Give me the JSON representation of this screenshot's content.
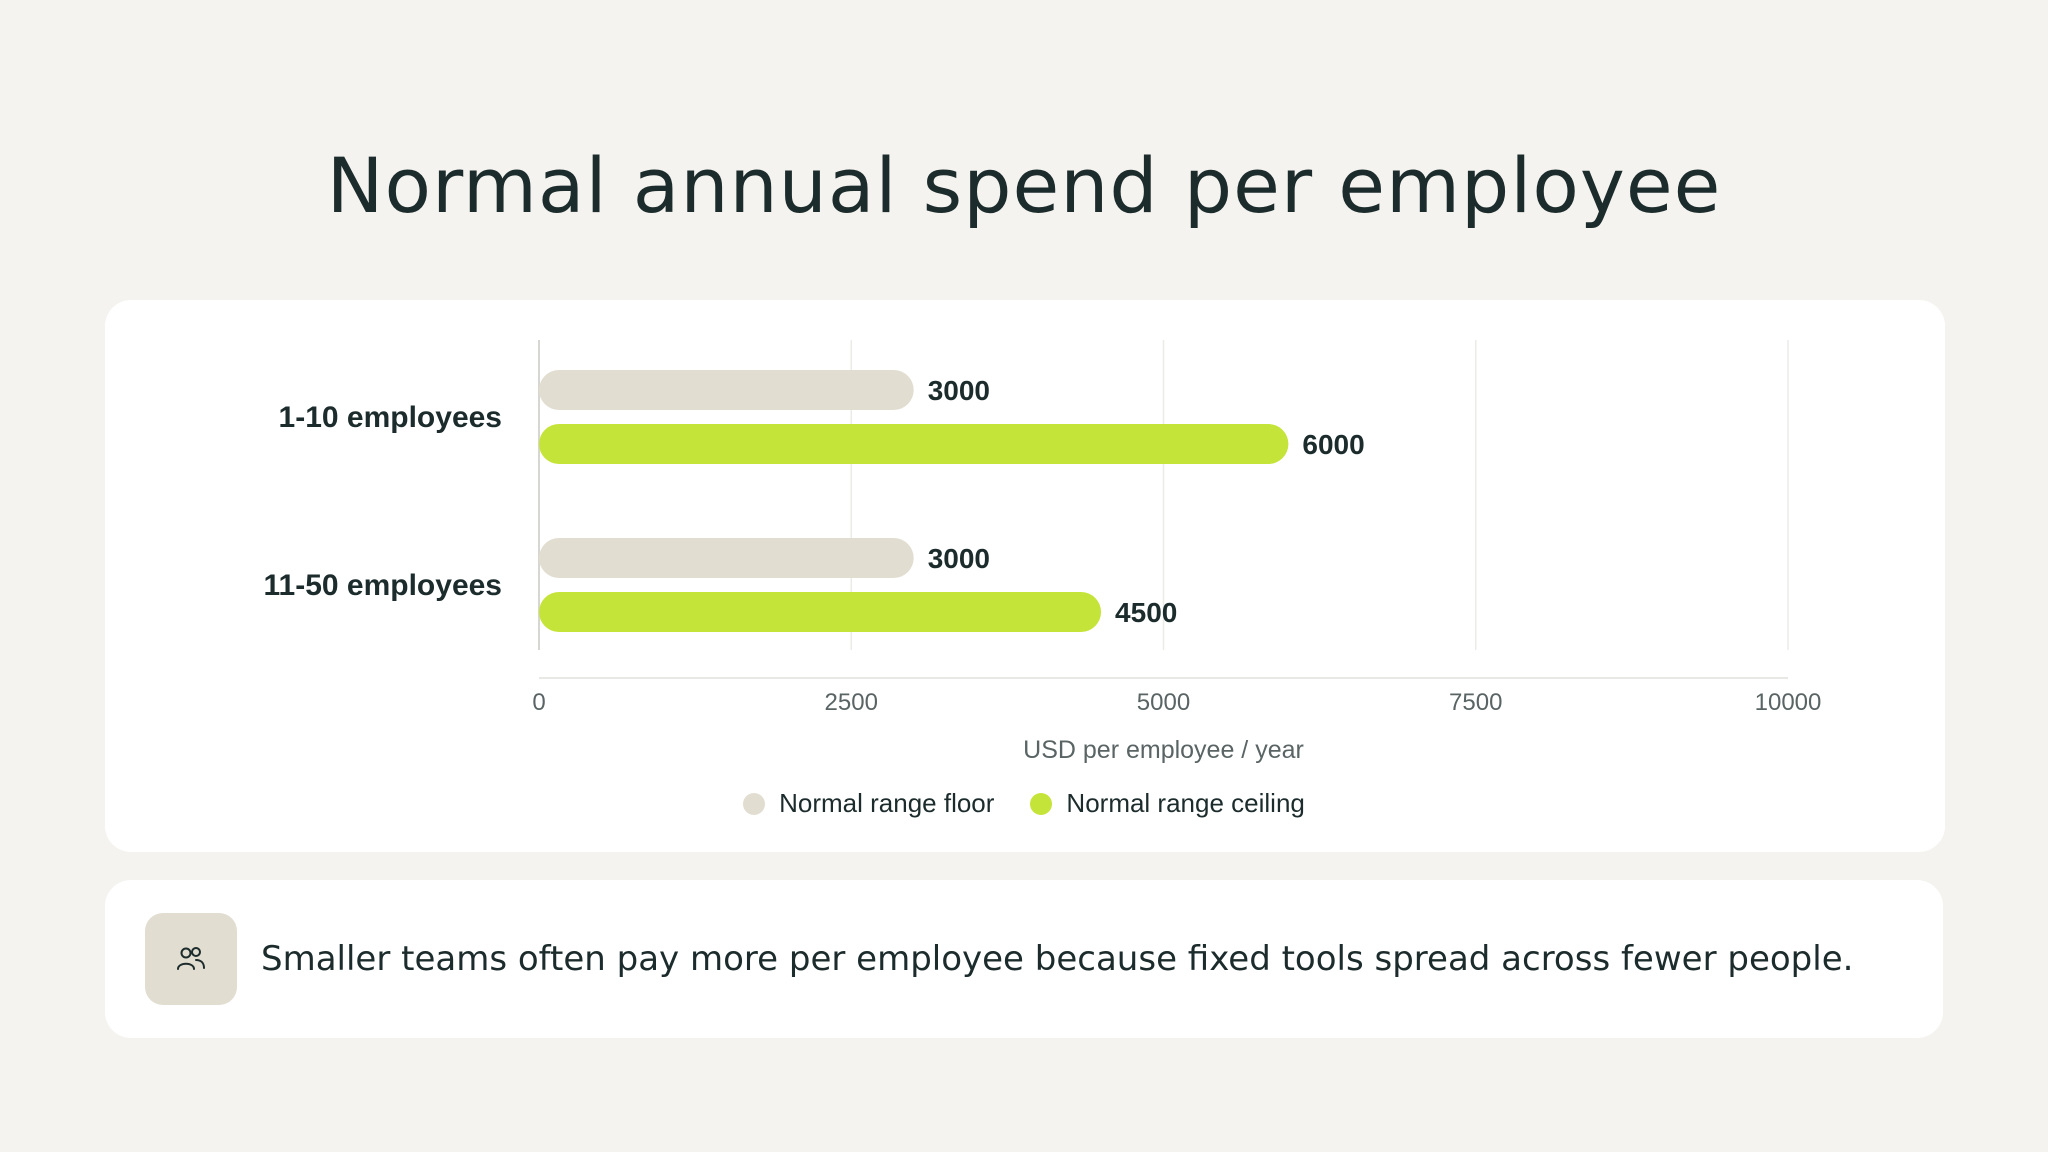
{
  "page": {
    "title": "Normal annual spend per employee"
  },
  "insight": {
    "icon": "people-icon",
    "text": "Smaller teams often pay more per employee because fixed tools spread across fewer people."
  },
  "colors": {
    "background": "#f4f3ef",
    "card": "#ffffff",
    "floor": "#e2ddd1",
    "ceiling": "#c5e43a",
    "text": "#1c2b2b",
    "axis_text": "#5a6464",
    "grid": "#ebebe8"
  },
  "chart_data": {
    "type": "bar",
    "orientation": "horizontal",
    "categories": [
      "1-10 employees",
      "11-50 employees"
    ],
    "series": [
      {
        "name": "Normal range floor",
        "color": "#e2ddd1",
        "values": [
          3000,
          3000
        ]
      },
      {
        "name": "Normal range ceiling",
        "color": "#c5e43a",
        "values": [
          6000,
          4500
        ]
      }
    ],
    "xlabel": "USD per employee / year",
    "xlim": [
      0,
      10000
    ],
    "xticks": [
      0,
      2500,
      5000,
      7500,
      10000
    ],
    "grid": true,
    "legend_position": "bottom-center",
    "data_labels": true
  }
}
